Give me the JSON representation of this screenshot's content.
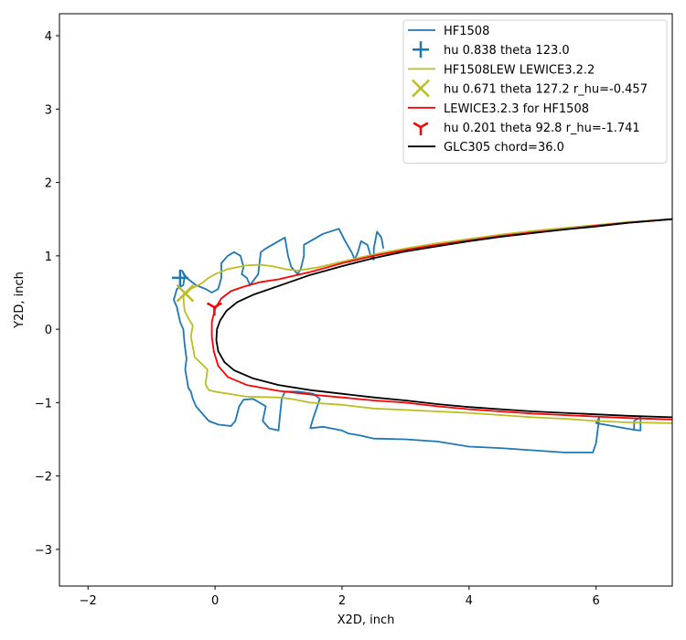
{
  "chart_data": {
    "type": "line",
    "title": "",
    "xlabel": "X2D, inch",
    "ylabel": "Y2D, inch",
    "xlim": [
      -2.45,
      7.2
    ],
    "ylim": [
      -3.5,
      4.3
    ],
    "xticks": [
      -2,
      0,
      2,
      4,
      6
    ],
    "yticks": [
      -3,
      -2,
      -1,
      0,
      1,
      2,
      3,
      4
    ],
    "grid": false,
    "legend_position": "top-right",
    "series": [
      {
        "name": "HF1508",
        "kind": "line",
        "color": "#1f77b4",
        "points": [
          [
            6.6,
            -1.37
          ],
          [
            6.6,
            -1.25
          ],
          [
            6.7,
            -1.2
          ],
          [
            6.7,
            -1.38
          ],
          [
            6.6,
            -1.37
          ],
          [
            6.0,
            -1.28
          ],
          [
            6.05,
            -1.2
          ],
          [
            6.0,
            -1.55
          ],
          [
            5.95,
            -1.68
          ],
          [
            5.5,
            -1.68
          ],
          [
            5.0,
            -1.65
          ],
          [
            4.5,
            -1.62
          ],
          [
            4.0,
            -1.6
          ],
          [
            3.5,
            -1.53
          ],
          [
            3.0,
            -1.5
          ],
          [
            2.5,
            -1.49
          ],
          [
            2.3,
            -1.45
          ],
          [
            2.1,
            -1.42
          ],
          [
            2.0,
            -1.38
          ],
          [
            1.7,
            -1.33
          ],
          [
            1.5,
            -1.35
          ],
          [
            1.55,
            -1.2
          ],
          [
            1.65,
            -0.95
          ],
          [
            1.55,
            -0.88
          ],
          [
            1.3,
            -0.85
          ],
          [
            1.1,
            -0.85
          ],
          [
            1.05,
            -0.95
          ],
          [
            1.02,
            -1.2
          ],
          [
            1.0,
            -1.38
          ],
          [
            0.85,
            -1.35
          ],
          [
            0.75,
            -1.25
          ],
          [
            0.8,
            -1.05
          ],
          [
            0.6,
            -0.95
          ],
          [
            0.45,
            -0.96
          ],
          [
            0.38,
            -1.05
          ],
          [
            0.32,
            -1.25
          ],
          [
            0.25,
            -1.32
          ],
          [
            0.05,
            -1.3
          ],
          [
            -0.1,
            -1.25
          ],
          [
            -0.2,
            -1.15
          ],
          [
            -0.3,
            -1.05
          ],
          [
            -0.35,
            -0.95
          ],
          [
            -0.38,
            -0.85
          ],
          [
            -0.42,
            -0.8
          ],
          [
            -0.45,
            -0.65
          ],
          [
            -0.47,
            -0.55
          ],
          [
            -0.45,
            -0.4
          ],
          [
            -0.48,
            -0.2
          ],
          [
            -0.5,
            0.0
          ],
          [
            -0.55,
            0.1
          ],
          [
            -0.6,
            0.3
          ],
          [
            -0.65,
            0.4
          ],
          [
            -0.6,
            0.55
          ],
          [
            -0.5,
            0.6
          ],
          [
            -0.48,
            0.72
          ],
          [
            -0.52,
            0.8
          ],
          [
            -0.45,
            0.7
          ],
          [
            -0.3,
            0.6
          ],
          [
            -0.15,
            0.55
          ],
          [
            -0.05,
            0.5
          ],
          [
            0.05,
            0.55
          ],
          [
            0.1,
            0.7
          ],
          [
            0.1,
            0.9
          ],
          [
            0.2,
            1.0
          ],
          [
            0.3,
            1.05
          ],
          [
            0.4,
            1.0
          ],
          [
            0.45,
            0.85
          ],
          [
            0.42,
            0.75
          ],
          [
            0.5,
            0.7
          ],
          [
            0.55,
            0.6
          ],
          [
            0.68,
            0.75
          ],
          [
            0.7,
            0.9
          ],
          [
            0.72,
            1.05
          ],
          [
            0.8,
            1.1
          ],
          [
            1.0,
            1.2
          ],
          [
            1.1,
            1.25
          ],
          [
            1.15,
            1.0
          ],
          [
            1.2,
            0.85
          ],
          [
            1.3,
            0.75
          ],
          [
            1.35,
            0.82
          ],
          [
            1.4,
            1.0
          ],
          [
            1.4,
            1.15
          ],
          [
            1.5,
            1.2
          ],
          [
            1.7,
            1.3
          ],
          [
            1.95,
            1.37
          ],
          [
            2.05,
            1.2
          ],
          [
            2.15,
            1.05
          ],
          [
            2.2,
            0.95
          ],
          [
            2.25,
            1.05
          ],
          [
            2.3,
            1.2
          ],
          [
            2.4,
            1.15
          ],
          [
            2.45,
            1.0
          ],
          [
            2.5,
            0.95
          ],
          [
            2.5,
            1.1
          ],
          [
            2.55,
            1.33
          ],
          [
            2.62,
            1.25
          ],
          [
            2.65,
            1.1
          ]
        ]
      },
      {
        "name": "hu 0.838 theta 123.0",
        "kind": "marker",
        "marker": "plus",
        "color": "#1f77b4",
        "points": [
          [
            -0.55,
            0.7
          ]
        ]
      },
      {
        "name": "HF1508LEW LEWICE3.2.2",
        "kind": "line",
        "color": "#bcbd22",
        "points": [
          [
            7.2,
            -1.28
          ],
          [
            6.5,
            -1.27
          ],
          [
            6.0,
            -1.25
          ],
          [
            5.5,
            -1.22
          ],
          [
            5.0,
            -1.2
          ],
          [
            4.5,
            -1.17
          ],
          [
            4.0,
            -1.14
          ],
          [
            3.5,
            -1.12
          ],
          [
            3.0,
            -1.1
          ],
          [
            2.5,
            -1.08
          ],
          [
            2.0,
            -1.03
          ],
          [
            1.5,
            -1.0
          ],
          [
            1.2,
            -0.95
          ],
          [
            1.0,
            -0.93
          ],
          [
            0.5,
            -0.92
          ],
          [
            0.0,
            -0.85
          ],
          [
            -0.1,
            -0.83
          ],
          [
            -0.15,
            -0.75
          ],
          [
            -0.12,
            -0.55
          ],
          [
            -0.2,
            -0.48
          ],
          [
            -0.32,
            -0.38
          ],
          [
            -0.38,
            -0.1
          ],
          [
            -0.35,
            0.05
          ],
          [
            -0.42,
            0.15
          ],
          [
            -0.48,
            0.25
          ],
          [
            -0.5,
            0.45
          ],
          [
            -0.38,
            0.55
          ],
          [
            -0.22,
            0.62
          ],
          [
            -0.1,
            0.7
          ],
          [
            0.0,
            0.75
          ],
          [
            0.2,
            0.82
          ],
          [
            0.5,
            0.87
          ],
          [
            0.7,
            0.88
          ],
          [
            0.9,
            0.86
          ],
          [
            1.1,
            0.82
          ],
          [
            1.3,
            0.8
          ],
          [
            1.6,
            0.84
          ],
          [
            2.0,
            0.92
          ],
          [
            2.5,
            1.02
          ],
          [
            3.0,
            1.1
          ],
          [
            3.5,
            1.17
          ],
          [
            4.0,
            1.23
          ],
          [
            4.5,
            1.29
          ],
          [
            5.0,
            1.34
          ],
          [
            5.5,
            1.38
          ],
          [
            6.0,
            1.42
          ],
          [
            6.5,
            1.46
          ],
          [
            7.2,
            1.5
          ]
        ]
      },
      {
        "name": "hu 0.671 theta 127.2 r_hu=-0.457",
        "kind": "marker",
        "marker": "x",
        "color": "#bcbd22",
        "points": [
          [
            -0.47,
            0.49
          ]
        ]
      },
      {
        "name": "LEWICE3.2.3 for HF1508",
        "kind": "line",
        "color": "#ff0000",
        "points": [
          [
            7.2,
            -1.23
          ],
          [
            6.5,
            -1.21
          ],
          [
            6.0,
            -1.19
          ],
          [
            5.5,
            -1.17
          ],
          [
            5.0,
            -1.15
          ],
          [
            4.5,
            -1.12
          ],
          [
            4.0,
            -1.09
          ],
          [
            3.5,
            -1.05
          ],
          [
            3.0,
            -1.0
          ],
          [
            2.5,
            -0.97
          ],
          [
            2.0,
            -0.93
          ],
          [
            1.5,
            -0.89
          ],
          [
            1.0,
            -0.84
          ],
          [
            0.5,
            -0.76
          ],
          [
            0.2,
            -0.65
          ],
          [
            0.05,
            -0.5
          ],
          [
            -0.02,
            -0.3
          ],
          [
            -0.05,
            -0.1
          ],
          [
            -0.05,
            0.1
          ],
          [
            0.0,
            0.28
          ],
          [
            0.1,
            0.42
          ],
          [
            0.25,
            0.52
          ],
          [
            0.45,
            0.58
          ],
          [
            0.7,
            0.64
          ],
          [
            1.0,
            0.68
          ],
          [
            1.5,
            0.78
          ],
          [
            2.0,
            0.9
          ],
          [
            2.5,
            1.0
          ],
          [
            3.0,
            1.08
          ],
          [
            3.5,
            1.15
          ],
          [
            4.0,
            1.21
          ],
          [
            4.5,
            1.27
          ],
          [
            5.0,
            1.32
          ],
          [
            5.5,
            1.36
          ],
          [
            6.0,
            1.41
          ],
          [
            6.5,
            1.45
          ],
          [
            7.2,
            1.5
          ]
        ]
      },
      {
        "name": "hu 0.201 theta 92.8 r_hu=-1.741",
        "kind": "marker",
        "marker": "tri_down",
        "color": "#ff0000",
        "points": [
          [
            -0.01,
            0.3
          ]
        ]
      },
      {
        "name": "GLC305 chord=36.0",
        "kind": "line",
        "color": "#000000",
        "points": [
          [
            7.2,
            -1.2
          ],
          [
            6.5,
            -1.18
          ],
          [
            6.0,
            -1.16
          ],
          [
            5.5,
            -1.14
          ],
          [
            5.0,
            -1.12
          ],
          [
            4.5,
            -1.09
          ],
          [
            4.0,
            -1.06
          ],
          [
            3.5,
            -1.02
          ],
          [
            3.0,
            -0.97
          ],
          [
            2.5,
            -0.93
          ],
          [
            2.0,
            -0.88
          ],
          [
            1.5,
            -0.83
          ],
          [
            1.0,
            -0.76
          ],
          [
            0.6,
            -0.67
          ],
          [
            0.3,
            -0.56
          ],
          [
            0.15,
            -0.45
          ],
          [
            0.05,
            -0.3
          ],
          [
            0.02,
            -0.15
          ],
          [
            0.03,
            0.0
          ],
          [
            0.08,
            0.12
          ],
          [
            0.18,
            0.25
          ],
          [
            0.35,
            0.37
          ],
          [
            0.6,
            0.47
          ],
          [
            1.0,
            0.59
          ],
          [
            1.5,
            0.74
          ],
          [
            2.0,
            0.86
          ],
          [
            2.5,
            0.97
          ],
          [
            3.0,
            1.06
          ],
          [
            3.5,
            1.13
          ],
          [
            4.0,
            1.2
          ],
          [
            4.5,
            1.26
          ],
          [
            5.0,
            1.31
          ],
          [
            5.5,
            1.36
          ],
          [
            6.0,
            1.4
          ],
          [
            6.5,
            1.45
          ],
          [
            7.2,
            1.5
          ]
        ]
      }
    ]
  }
}
